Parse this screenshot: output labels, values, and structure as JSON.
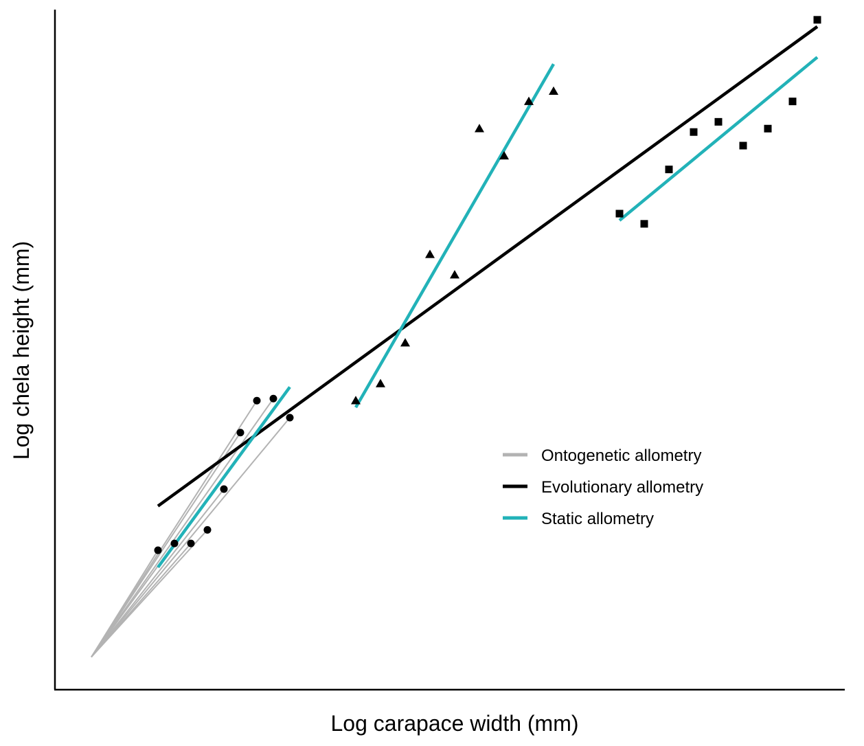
{
  "chart_data": {
    "type": "scatter",
    "title": "",
    "xlabel": "Log carapace width (mm)",
    "ylabel": "Log chela height (mm)",
    "xlim": [
      0,
      115
    ],
    "ylim": [
      0,
      100
    ],
    "grid": false,
    "ticks": false,
    "legend_position": "center-right",
    "colors": {
      "ontogenetic": "#b3b3b3",
      "evolutionary": "#000000",
      "static": "#22b2b8",
      "points": "#000000"
    },
    "legend": [
      {
        "key": "ontogenetic",
        "label": "Ontogenetic allometry"
      },
      {
        "key": "evolutionary",
        "label": "Evolutionary allometry"
      },
      {
        "key": "static",
        "label": "Static allometry"
      }
    ],
    "ontogenetic_origin": [
      5.3,
      4.8
    ],
    "groups": [
      {
        "marker": "circle",
        "points": [
          [
            15,
            20.5
          ],
          [
            17.4,
            21.5
          ],
          [
            19.8,
            21.5
          ],
          [
            22.2,
            23.5
          ],
          [
            24.6,
            29.5
          ],
          [
            27,
            37.8
          ],
          [
            29.4,
            42.5
          ],
          [
            31.8,
            42.8
          ],
          [
            34.2,
            40
          ]
        ],
        "static_line": {
          "x": [
            15,
            34.2
          ],
          "y": [
            18,
            44.5
          ]
        }
      },
      {
        "marker": "triangle",
        "points": [
          [
            43.8,
            42.5
          ],
          [
            47.4,
            45
          ],
          [
            51,
            51
          ],
          [
            54.6,
            64
          ],
          [
            58.2,
            61
          ],
          [
            61.8,
            82.5
          ],
          [
            65.4,
            78.5
          ],
          [
            69,
            86.5
          ],
          [
            72.6,
            88
          ]
        ],
        "static_line": {
          "x": [
            43.8,
            72.6
          ],
          "y": [
            41.5,
            92
          ]
        }
      },
      {
        "marker": "square",
        "points": [
          [
            82.2,
            70
          ],
          [
            85.8,
            68.5
          ],
          [
            89.4,
            76.5
          ],
          [
            93,
            82
          ],
          [
            96.6,
            83.5
          ],
          [
            100.2,
            80
          ],
          [
            103.8,
            82.5
          ],
          [
            107.4,
            86.5
          ],
          [
            111,
            98.5
          ]
        ],
        "static_line": {
          "x": [
            82.2,
            111
          ],
          "y": [
            69,
            93
          ]
        }
      }
    ],
    "evolutionary_line": {
      "x": [
        15,
        111
      ],
      "y": [
        27,
        97.5
      ]
    }
  }
}
